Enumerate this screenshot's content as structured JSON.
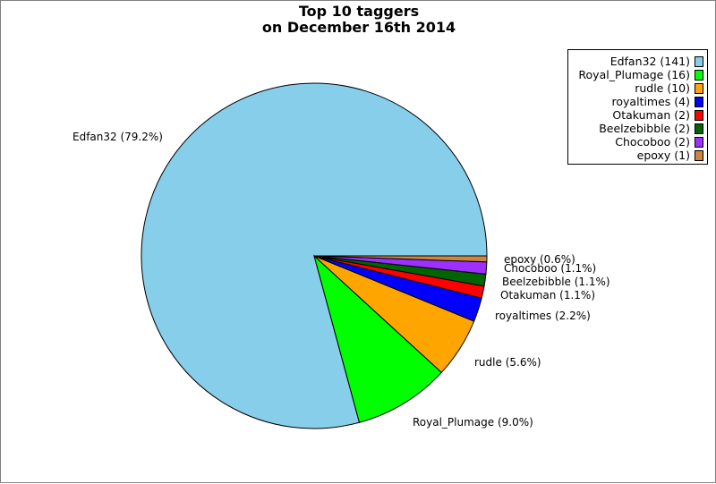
{
  "chart_data": {
    "type": "pie",
    "title": "Top 10 taggers",
    "subtitle": "on December 16th 2014",
    "slices": [
      {
        "name": "Edfan32",
        "value": 141,
        "percent_label": "Edfan32 (79.2%)",
        "legend_label": "Edfan32 (141)",
        "color": "#87CEEB"
      },
      {
        "name": "Royal_Plumage",
        "value": 16,
        "percent_label": "Royal_Plumage (9.0%)",
        "legend_label": "Royal_Plumage (16)",
        "color": "#00FF00"
      },
      {
        "name": "rudle",
        "value": 10,
        "percent_label": "rudle (5.6%)",
        "legend_label": "rudle (10)",
        "color": "#FFA500"
      },
      {
        "name": "royaltimes",
        "value": 4,
        "percent_label": "royaltimes (2.2%)",
        "legend_label": "royaltimes (4)",
        "color": "#0000FF"
      },
      {
        "name": "Otakuman",
        "value": 2,
        "percent_label": "Otakuman (1.1%)",
        "legend_label": "Otakuman (2)",
        "color": "#FF0000"
      },
      {
        "name": "Beelzebibble",
        "value": 2,
        "percent_label": "Beelzebibble (1.1%)",
        "legend_label": "Beelzebibble (2)",
        "color": "#006400"
      },
      {
        "name": "Chocoboo",
        "value": 2,
        "percent_label": "Chocoboo (1.1%)",
        "legend_label": "Chocoboo (2)",
        "color": "#9B30FF"
      },
      {
        "name": "epoxy",
        "value": 1,
        "percent_label": "epoxy (0.6%)",
        "legend_label": "epoxy (1)",
        "color": "#CD853F"
      }
    ],
    "legend_position": "top-right"
  }
}
